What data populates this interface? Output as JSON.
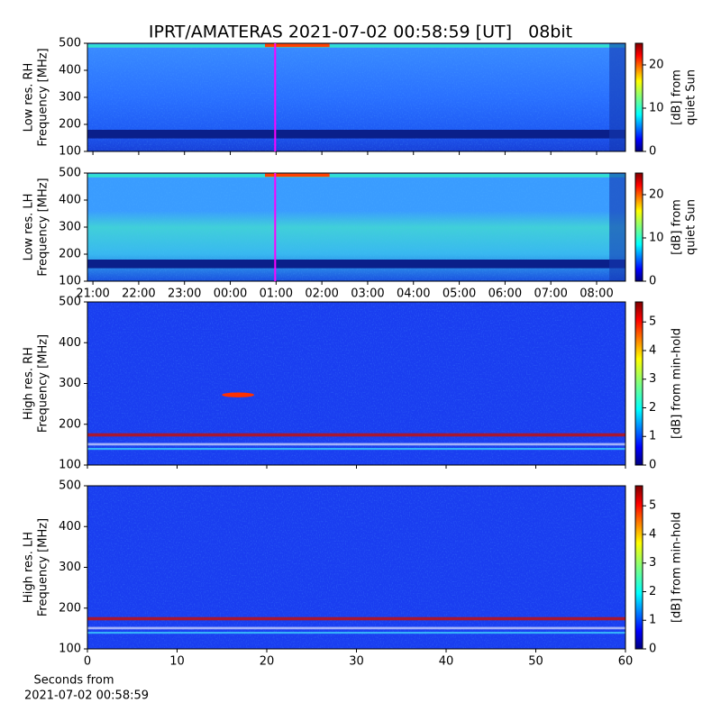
{
  "title": "IPRT/AMATERAS 2021-07-02 00:58:59 [UT]   08bit",
  "xlabel": [
    "Seconds from",
    "2021-07-02 00:58:59"
  ],
  "chart_data": [
    {
      "type": "heatmap",
      "ylabel": [
        "Low res. RH",
        "Frequency [MHz]"
      ],
      "xlim": [
        20.88,
        32.63
      ],
      "xticks": [
        {
          "value": 21,
          "label": "21:00"
        },
        {
          "value": 22,
          "label": "22:00"
        },
        {
          "value": 23,
          "label": "23:00"
        },
        {
          "value": 24,
          "label": "00:00"
        },
        {
          "value": 25,
          "label": "01:00"
        },
        {
          "value": 26,
          "label": "02:00"
        },
        {
          "value": 27,
          "label": "03:00"
        },
        {
          "value": 28,
          "label": "04:00"
        },
        {
          "value": 29,
          "label": "05:00"
        },
        {
          "value": 30,
          "label": "06:00"
        },
        {
          "value": 31,
          "label": "07:00"
        },
        {
          "value": 32,
          "label": "08:00"
        }
      ],
      "show_xtick_labels": false,
      "ylim": [
        100,
        500
      ],
      "yticks": [
        100,
        200,
        300,
        400,
        500
      ],
      "marker_x": 24.98,
      "marker_color": "#ff00ff",
      "colorbar": {
        "label": [
          "[dB] from",
          "quiet Sun"
        ],
        "lim": [
          0,
          25
        ],
        "ticks": [
          0,
          10,
          20
        ]
      }
    },
    {
      "type": "heatmap",
      "ylabel": [
        "Low res. LH",
        "Frequency [MHz]"
      ],
      "xlim": [
        20.88,
        32.63
      ],
      "xticks": [
        {
          "value": 21,
          "label": "21:00"
        },
        {
          "value": 22,
          "label": "22:00"
        },
        {
          "value": 23,
          "label": "23:00"
        },
        {
          "value": 24,
          "label": "00:00"
        },
        {
          "value": 25,
          "label": "01:00"
        },
        {
          "value": 26,
          "label": "02:00"
        },
        {
          "value": 27,
          "label": "03:00"
        },
        {
          "value": 28,
          "label": "04:00"
        },
        {
          "value": 29,
          "label": "05:00"
        },
        {
          "value": 30,
          "label": "06:00"
        },
        {
          "value": 31,
          "label": "07:00"
        },
        {
          "value": 32,
          "label": "08:00"
        }
      ],
      "show_xtick_labels": true,
      "ylim": [
        100,
        500
      ],
      "yticks": [
        100,
        200,
        300,
        400,
        500
      ],
      "marker_x": 24.98,
      "marker_color": "#ff00ff",
      "colorbar": {
        "label": [
          "[dB] from",
          "quiet Sun"
        ],
        "lim": [
          0,
          25
        ],
        "ticks": [
          0,
          10,
          20
        ]
      }
    },
    {
      "type": "heatmap",
      "ylabel": [
        "High res. RH",
        "Frequency [MHz]"
      ],
      "xlim": [
        0,
        60
      ],
      "xticks": [
        0,
        10,
        20,
        30,
        40,
        50,
        60
      ],
      "show_xtick_labels": false,
      "ylim": [
        100,
        500
      ],
      "yticks": [
        100,
        200,
        300,
        400,
        500
      ],
      "colorbar": {
        "label": [
          "[dB] from min-hold"
        ],
        "lim": [
          0,
          5.7
        ],
        "ticks": [
          0,
          1,
          2,
          3,
          4,
          5
        ]
      }
    },
    {
      "type": "heatmap",
      "ylabel": [
        "High res. LH",
        "Frequency [MHz]"
      ],
      "xlim": [
        0,
        60
      ],
      "xticks": [
        0,
        10,
        20,
        30,
        40,
        50,
        60
      ],
      "show_xtick_labels": true,
      "ylim": [
        100,
        500
      ],
      "yticks": [
        100,
        200,
        300,
        400,
        500
      ],
      "colorbar": {
        "label": [
          "[dB] from min-hold"
        ],
        "lim": [
          0,
          5.7
        ],
        "ticks": [
          0,
          1,
          2,
          3,
          4,
          5
        ]
      }
    }
  ]
}
